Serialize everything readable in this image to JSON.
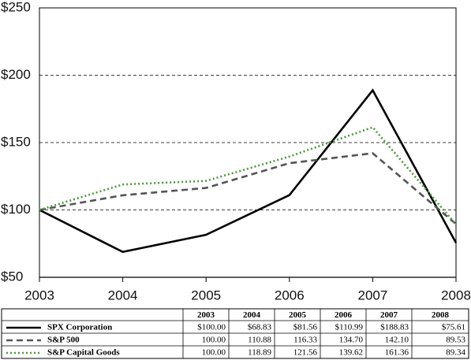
{
  "chart_data": {
    "type": "line",
    "x": [
      2003,
      2004,
      2005,
      2006,
      2007,
      2008
    ],
    "xlim": [
      2003,
      2008
    ],
    "xticks": [
      2003,
      2004,
      2005,
      2006,
      2007,
      2008
    ],
    "ylim": [
      50,
      250
    ],
    "yticks": [
      {
        "value": 50,
        "label": "$50"
      },
      {
        "value": 100,
        "label": "$100"
      },
      {
        "value": 150,
        "label": "$150"
      },
      {
        "value": 200,
        "label": "$200"
      },
      {
        "value": 250,
        "label": "$250"
      }
    ],
    "grid": true,
    "series": [
      {
        "name": "SPX Corporation",
        "color": "#000000",
        "dash": "solid",
        "values": [
          100.0,
          68.83,
          81.56,
          110.99,
          188.83,
          75.61
        ],
        "value_labels": [
          "$100.00",
          "$68.83",
          "$81.56",
          "$110.99",
          "$188.83",
          "$75.61"
        ]
      },
      {
        "name": "S&P 500",
        "color": "#555555",
        "dash": "dashed",
        "values": [
          100.0,
          110.88,
          116.33,
          134.7,
          142.1,
          89.53
        ],
        "value_labels": [
          "100.00",
          "110.88",
          "116.33",
          "134.70",
          "142.10",
          "89.53"
        ]
      },
      {
        "name": "S&P Capital Goods",
        "color": "#4a9a3a",
        "dash": "dotted",
        "values": [
          100.0,
          118.89,
          121.56,
          139.62,
          161.36,
          89.34
        ],
        "value_labels": [
          "100.00",
          "118.89",
          "121.56",
          "139.62",
          "161.36",
          "89.34"
        ]
      }
    ]
  }
}
